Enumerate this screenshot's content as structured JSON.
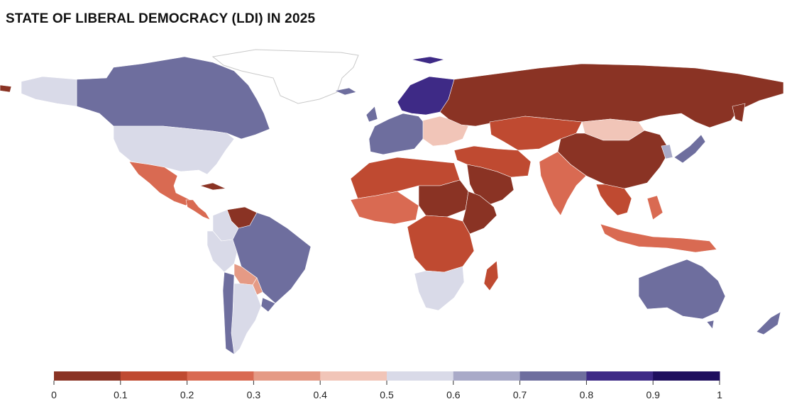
{
  "title": "STATE OF LIBERAL DEMOCRACY (LDI) IN 2025",
  "legend": {
    "min": 0,
    "max": 1,
    "ticks": [
      "0",
      "0.1",
      "0.2",
      "0.3",
      "0.4",
      "0.5",
      "0.6",
      "0.7",
      "0.8",
      "0.9",
      "1"
    ],
    "bins": [
      {
        "from": 0.0,
        "to": 0.1,
        "color": "#8a3324"
      },
      {
        "from": 0.1,
        "to": 0.2,
        "color": "#bf4a31"
      },
      {
        "from": 0.2,
        "to": 0.3,
        "color": "#d96a52"
      },
      {
        "from": 0.3,
        "to": 0.4,
        "color": "#e59a85"
      },
      {
        "from": 0.4,
        "to": 0.5,
        "color": "#f1c5b8"
      },
      {
        "from": 0.5,
        "to": 0.6,
        "color": "#d9dae8"
      },
      {
        "from": 0.6,
        "to": 0.7,
        "color": "#a9aac8"
      },
      {
        "from": 0.7,
        "to": 0.8,
        "color": "#6e6e9e"
      },
      {
        "from": 0.8,
        "to": 0.9,
        "color": "#3e2a86"
      },
      {
        "from": 0.9,
        "to": 1.0,
        "color": "#1f0f5e"
      }
    ]
  },
  "regions": [
    {
      "name": "Canada",
      "bin": 7
    },
    {
      "name": "United States",
      "bin": 5
    },
    {
      "name": "Mexico",
      "bin": 2
    },
    {
      "name": "Central America",
      "bin": 2
    },
    {
      "name": "Cuba",
      "bin": 0
    },
    {
      "name": "Venezuela",
      "bin": 0
    },
    {
      "name": "Colombia",
      "bin": 5
    },
    {
      "name": "Peru",
      "bin": 5
    },
    {
      "name": "Brazil",
      "bin": 7
    },
    {
      "name": "Bolivia",
      "bin": 3
    },
    {
      "name": "Paraguay",
      "bin": 3
    },
    {
      "name": "Uruguay",
      "bin": 7
    },
    {
      "name": "Argentina",
      "bin": 5
    },
    {
      "name": "Chile",
      "bin": 7
    },
    {
      "name": "Greenland",
      "bin": -1
    },
    {
      "name": "Iceland",
      "bin": 7
    },
    {
      "name": "Scandinavia",
      "bin": 8
    },
    {
      "name": "Western Europe",
      "bin": 7
    },
    {
      "name": "Eastern Europe",
      "bin": 4
    },
    {
      "name": "Russia",
      "bin": 0
    },
    {
      "name": "Central Asia",
      "bin": 1
    },
    {
      "name": "Mongolia",
      "bin": 4
    },
    {
      "name": "China",
      "bin": 0
    },
    {
      "name": "Middle East",
      "bin": 1
    },
    {
      "name": "Arabian Peninsula",
      "bin": 0
    },
    {
      "name": "India",
      "bin": 2
    },
    {
      "name": "Southeast Asia",
      "bin": 1
    },
    {
      "name": "Indonesia",
      "bin": 2
    },
    {
      "name": "Japan",
      "bin": 7
    },
    {
      "name": "Korea",
      "bin": 6
    },
    {
      "name": "North Africa",
      "bin": 1
    },
    {
      "name": "Sahel",
      "bin": 0
    },
    {
      "name": "West Africa",
      "bin": 2
    },
    {
      "name": "Central Africa",
      "bin": 1
    },
    {
      "name": "East Africa",
      "bin": 0
    },
    {
      "name": "Southern Africa",
      "bin": 5
    },
    {
      "name": "Madagascar",
      "bin": 1
    },
    {
      "name": "Australia",
      "bin": 7
    },
    {
      "name": "New Zealand",
      "bin": 7
    }
  ]
}
